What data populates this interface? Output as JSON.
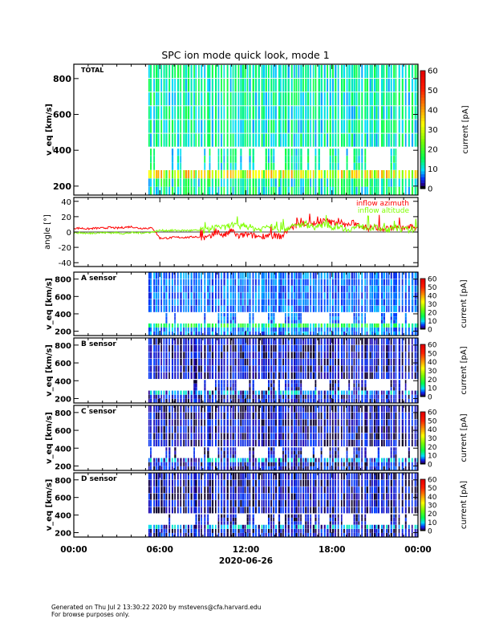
{
  "title": "SPC ion mode quick look, mode 1",
  "footer": {
    "line1": "Generated on Thu Jul  2 13:30:22 2020 by mstevens@cfa.harvard.edu",
    "line2": "For browse purposes only."
  },
  "chart_data": [
    {
      "type": "heatmap",
      "panel_label": "TOTAL",
      "ylabel": "v_eq [km/s]",
      "ylim": [
        150,
        880
      ],
      "yticks": [
        "200",
        "400",
        "600",
        "800"
      ],
      "colorbar": {
        "label": "current [pA]",
        "range": [
          0,
          60
        ],
        "ticks": [
          "0",
          "10",
          "20",
          "30",
          "40",
          "50",
          "60"
        ]
      },
      "data_start_hour": 5.2
    },
    {
      "type": "line",
      "ylabel": "angle [°]",
      "ylim": [
        -45,
        45
      ],
      "yticks": [
        "-40",
        "-20",
        "0",
        "20",
        "40"
      ],
      "x_hours_step": 0.5,
      "series": [
        {
          "name": "inflow azimuth",
          "color": "#ff0000",
          "values": [
            5,
            5,
            4,
            5,
            5,
            6,
            5,
            6,
            7,
            5,
            5,
            5,
            -8,
            -8,
            -7,
            -7,
            -7,
            -6,
            -8,
            -7,
            0,
            -5,
            2,
            -6,
            -3,
            -5,
            -6,
            -4,
            -5,
            -6,
            5,
            8,
            10,
            12,
            10,
            15,
            12,
            14,
            8,
            12,
            8,
            5,
            6,
            4,
            5,
            6,
            5,
            6,
            5
          ]
        },
        {
          "name": "inflow altitude",
          "color": "#80ff00",
          "values": [
            -1,
            -1,
            -2,
            -1,
            -1,
            -1,
            -1,
            -2,
            -1,
            -1,
            -1,
            0,
            2,
            2,
            2,
            2,
            2,
            2,
            2,
            3,
            8,
            5,
            10,
            6,
            8,
            5,
            3,
            8,
            5,
            3,
            6,
            8,
            10,
            8,
            6,
            10,
            6,
            8,
            3,
            5,
            8,
            5,
            6,
            4,
            3,
            5,
            3,
            3,
            4
          ]
        }
      ]
    },
    {
      "type": "heatmap",
      "panel_label": "A sensor",
      "ylabel": "v_eq [km/s]",
      "ylim": [
        150,
        880
      ],
      "yticks": [
        "200",
        "400",
        "600",
        "800"
      ],
      "colorbar": {
        "label": "current [pA]",
        "range": [
          0,
          60
        ],
        "ticks": [
          "0",
          "10",
          "20",
          "30",
          "40",
          "50",
          "60"
        ]
      }
    },
    {
      "type": "heatmap",
      "panel_label": "B sensor",
      "ylabel": "v_eq [km/s]",
      "ylim": [
        150,
        880
      ],
      "yticks": [
        "200",
        "400",
        "600",
        "800"
      ],
      "colorbar": {
        "label": "current [pA]",
        "range": [
          0,
          60
        ],
        "ticks": [
          "0",
          "10",
          "20",
          "30",
          "40",
          "50",
          "60"
        ]
      }
    },
    {
      "type": "heatmap",
      "panel_label": "C sensor",
      "ylabel": "v_eq [km/s]",
      "ylim": [
        150,
        880
      ],
      "yticks": [
        "200",
        "400",
        "600",
        "800"
      ],
      "colorbar": {
        "label": "current [pA]",
        "range": [
          0,
          60
        ],
        "ticks": [
          "0",
          "10",
          "20",
          "30",
          "40",
          "50",
          "60"
        ]
      }
    },
    {
      "type": "heatmap",
      "panel_label": "D sensor",
      "ylabel": "v_eq [km/s]",
      "ylim": [
        150,
        880
      ],
      "yticks": [
        "200",
        "400",
        "600",
        "800"
      ],
      "colorbar": {
        "label": "current [pA]",
        "range": [
          0,
          60
        ],
        "ticks": [
          "0",
          "10",
          "20",
          "30",
          "40",
          "50",
          "60"
        ]
      }
    }
  ],
  "xaxis": {
    "ticks": [
      "00:00",
      "06:00",
      "12:00",
      "18:00",
      "00:00"
    ],
    "label": "2020-06-26",
    "range_hours": [
      0,
      24
    ]
  }
}
